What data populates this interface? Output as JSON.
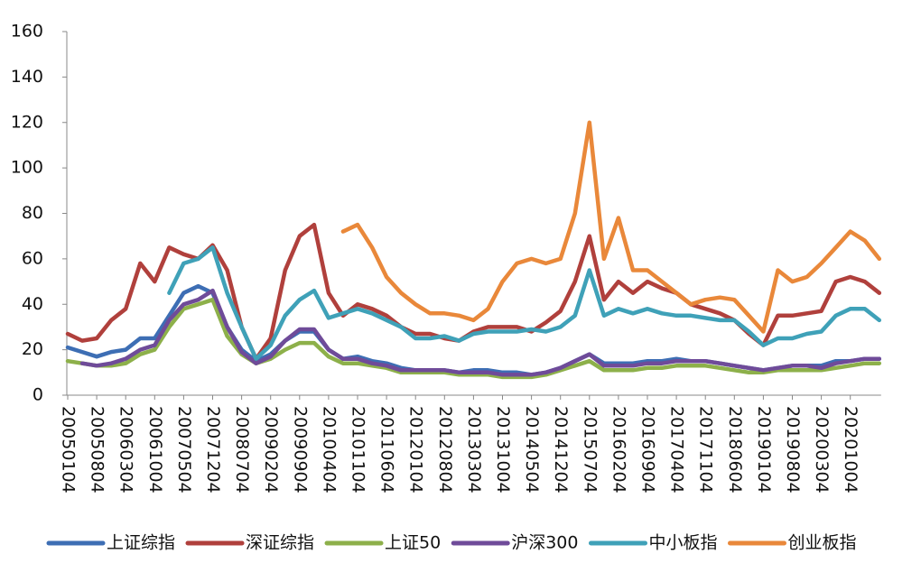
{
  "chart_data": {
    "type": "line",
    "categories": [
      "20050104",
      null,
      "20050804",
      null,
      "20060304",
      null,
      "20061004",
      null,
      "20070504",
      null,
      "20071204",
      null,
      "20080704",
      null,
      "20090204",
      null,
      "20090904",
      null,
      "20100404",
      null,
      "20101104",
      null,
      "20110604",
      null,
      "20120104",
      null,
      "20120804",
      null,
      "20130304",
      null,
      "20131004",
      null,
      "20140504",
      null,
      "20141204",
      null,
      "20150704",
      null,
      "20160204",
      null,
      "20160904",
      null,
      "20170404",
      null,
      "20171104",
      null,
      "20180604",
      null,
      "20190104",
      null,
      "20190804",
      null,
      "20200304",
      null,
      "20201004",
      null,
      null
    ],
    "series": [
      {
        "name": "上证综指",
        "color": "#3d6eb4",
        "values": [
          21,
          19,
          17,
          19,
          20,
          25,
          25,
          35,
          45,
          48,
          45,
          30,
          20,
          15,
          18,
          24,
          28,
          28,
          20,
          16,
          17,
          15,
          14,
          12,
          11,
          11,
          11,
          10,
          11,
          11,
          10,
          10,
          9,
          10,
          12,
          15,
          18,
          14,
          14,
          14,
          15,
          15,
          16,
          15,
          15,
          14,
          13,
          12,
          11,
          12,
          13,
          13,
          13,
          15,
          15,
          16,
          16
        ]
      },
      {
        "name": "深证综指",
        "color": "#b0403c",
        "values": [
          27,
          24,
          25,
          33,
          38,
          58,
          50,
          65,
          62,
          60,
          66,
          55,
          30,
          16,
          25,
          55,
          70,
          75,
          45,
          35,
          40,
          38,
          35,
          30,
          27,
          27,
          25,
          24,
          28,
          30,
          30,
          30,
          28,
          32,
          37,
          50,
          70,
          42,
          50,
          45,
          50,
          47,
          45,
          40,
          38,
          36,
          33,
          27,
          22,
          35,
          35,
          36,
          37,
          50,
          52,
          50,
          45
        ]
      },
      {
        "name": "上证50",
        "color": "#8db04a",
        "values": [
          15,
          14,
          13,
          13,
          14,
          18,
          20,
          30,
          38,
          40,
          42,
          26,
          18,
          14,
          16,
          20,
          23,
          23,
          17,
          14,
          14,
          13,
          12,
          10,
          10,
          10,
          10,
          9,
          9,
          9,
          8,
          8,
          8,
          9,
          11,
          13,
          15,
          11,
          11,
          11,
          12,
          12,
          13,
          13,
          13,
          12,
          11,
          10,
          10,
          11,
          11,
          11,
          11,
          12,
          13,
          14,
          14
        ]
      },
      {
        "name": "沪深300",
        "color": "#6f4b99",
        "values": [
          null,
          14,
          13,
          14,
          16,
          20,
          22,
          33,
          40,
          42,
          46,
          30,
          19,
          14,
          17,
          24,
          29,
          29,
          20,
          16,
          16,
          14,
          13,
          11,
          11,
          11,
          11,
          10,
          10,
          10,
          9,
          9,
          9,
          10,
          12,
          15,
          18,
          13,
          13,
          13,
          14,
          14,
          15,
          15,
          15,
          14,
          13,
          12,
          11,
          12,
          13,
          13,
          12,
          14,
          15,
          16,
          16
        ]
      },
      {
        "name": "中小板指",
        "color": "#3fa1b8",
        "values": [
          null,
          null,
          null,
          null,
          null,
          null,
          null,
          45,
          58,
          60,
          65,
          45,
          30,
          16,
          22,
          35,
          42,
          46,
          34,
          36,
          38,
          36,
          33,
          30,
          25,
          25,
          26,
          24,
          27,
          28,
          28,
          28,
          29,
          28,
          30,
          35,
          55,
          35,
          38,
          36,
          38,
          36,
          35,
          35,
          34,
          33,
          33,
          28,
          22,
          25,
          25,
          27,
          28,
          35,
          38,
          38,
          33
        ]
      },
      {
        "name": "创业板指",
        "color": "#e9883a",
        "values": [
          null,
          null,
          null,
          null,
          null,
          null,
          null,
          null,
          null,
          null,
          null,
          null,
          null,
          null,
          null,
          null,
          null,
          null,
          null,
          72,
          75,
          65,
          52,
          45,
          40,
          36,
          36,
          35,
          33,
          38,
          50,
          58,
          60,
          58,
          60,
          80,
          120,
          60,
          78,
          55,
          55,
          50,
          45,
          40,
          42,
          43,
          42,
          35,
          28,
          55,
          50,
          52,
          58,
          65,
          72,
          68,
          60
        ]
      }
    ],
    "ylim": [
      0,
      160
    ],
    "yticks": [
      0,
      20,
      40,
      60,
      80,
      100,
      120,
      140,
      160
    ],
    "grid": false
  }
}
